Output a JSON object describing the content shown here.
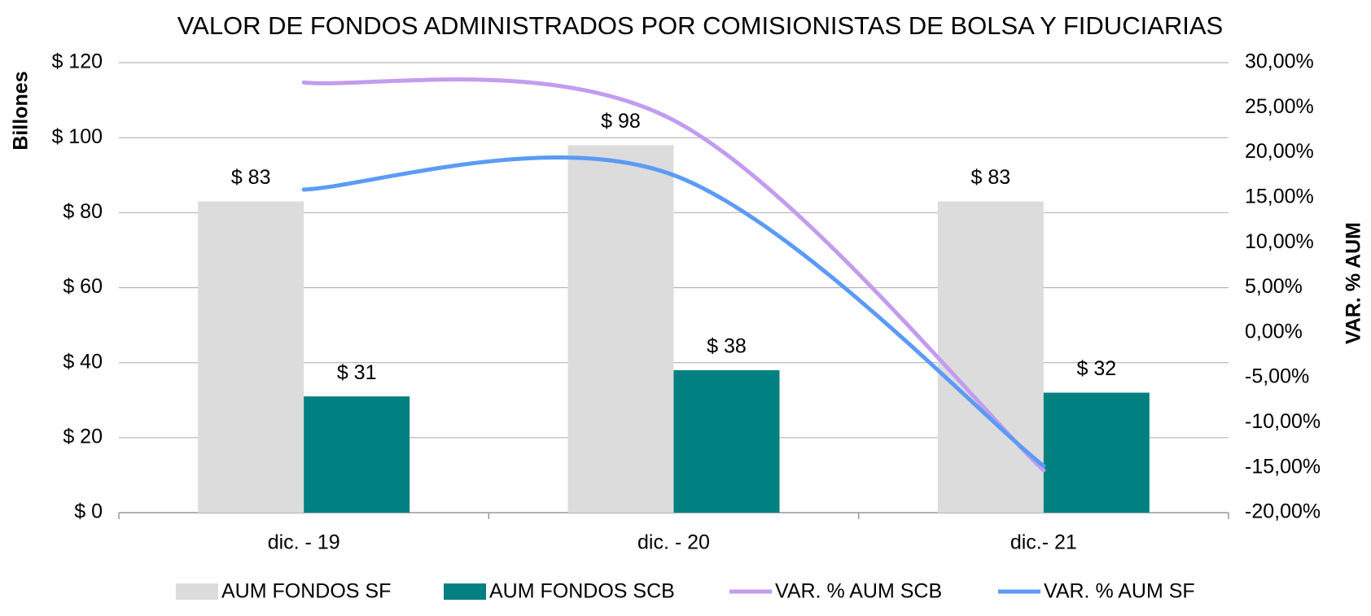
{
  "chart_data": {
    "type": "bar_line",
    "title": "VALOR DE FONDOS ADMINISTRADOS POR COMISIONISTAS DE BOLSA Y FIDUCIARIAS",
    "y_label": "Billones",
    "y2_label": "VAR. % AUM",
    "categories": [
      "dic. - 19",
      "dic. - 20",
      "dic.- 21"
    ],
    "ylim": [
      0,
      120
    ],
    "yticks": [
      {
        "value": 0,
        "label": "$ 0"
      },
      {
        "value": 20,
        "label": "$ 20"
      },
      {
        "value": 40,
        "label": "$ 40"
      },
      {
        "value": 60,
        "label": "$ 60"
      },
      {
        "value": 80,
        "label": "$ 80"
      },
      {
        "value": 100,
        "label": "$ 100"
      },
      {
        "value": 120,
        "label": "$ 120"
      }
    ],
    "y2lim": [
      -20,
      30
    ],
    "y2ticks": [
      {
        "value": -20,
        "label": "-20,00%"
      },
      {
        "value": -15,
        "label": "-15,00%"
      },
      {
        "value": -10,
        "label": "-10,00%"
      },
      {
        "value": -5,
        "label": "-5,00%"
      },
      {
        "value": 0,
        "label": "0,00%"
      },
      {
        "value": 5,
        "label": "5,00%"
      },
      {
        "value": 10,
        "label": "10,00%"
      },
      {
        "value": 15,
        "label": "15,00%"
      },
      {
        "value": 20,
        "label": "20,00%"
      },
      {
        "value": 25,
        "label": "25,00%"
      },
      {
        "value": 30,
        "label": "30,00%"
      }
    ],
    "grid": true,
    "series": [
      {
        "name": "AUM FONDOS SF",
        "kind": "bar",
        "color": "#dcdcdc",
        "values": [
          83,
          98,
          83
        ],
        "value_labels": [
          "$ 83",
          "$ 98",
          "$ 83"
        ]
      },
      {
        "name": "AUM FONDOS SCB",
        "kind": "bar",
        "color": "#008080",
        "values": [
          31,
          38,
          32
        ],
        "value_labels": [
          "$ 31",
          "$ 38",
          "$ 32"
        ]
      },
      {
        "name": "VAR. % AUM SCB",
        "kind": "line",
        "axis": "y2",
        "color": "#c39bf0",
        "values": [
          27.8,
          23.6,
          -15.3
        ]
      },
      {
        "name": "VAR. % AUM SF",
        "kind": "line",
        "axis": "y2",
        "color": "#5b9bf5",
        "values": [
          15.9,
          17.5,
          -14.8
        ]
      }
    ]
  }
}
